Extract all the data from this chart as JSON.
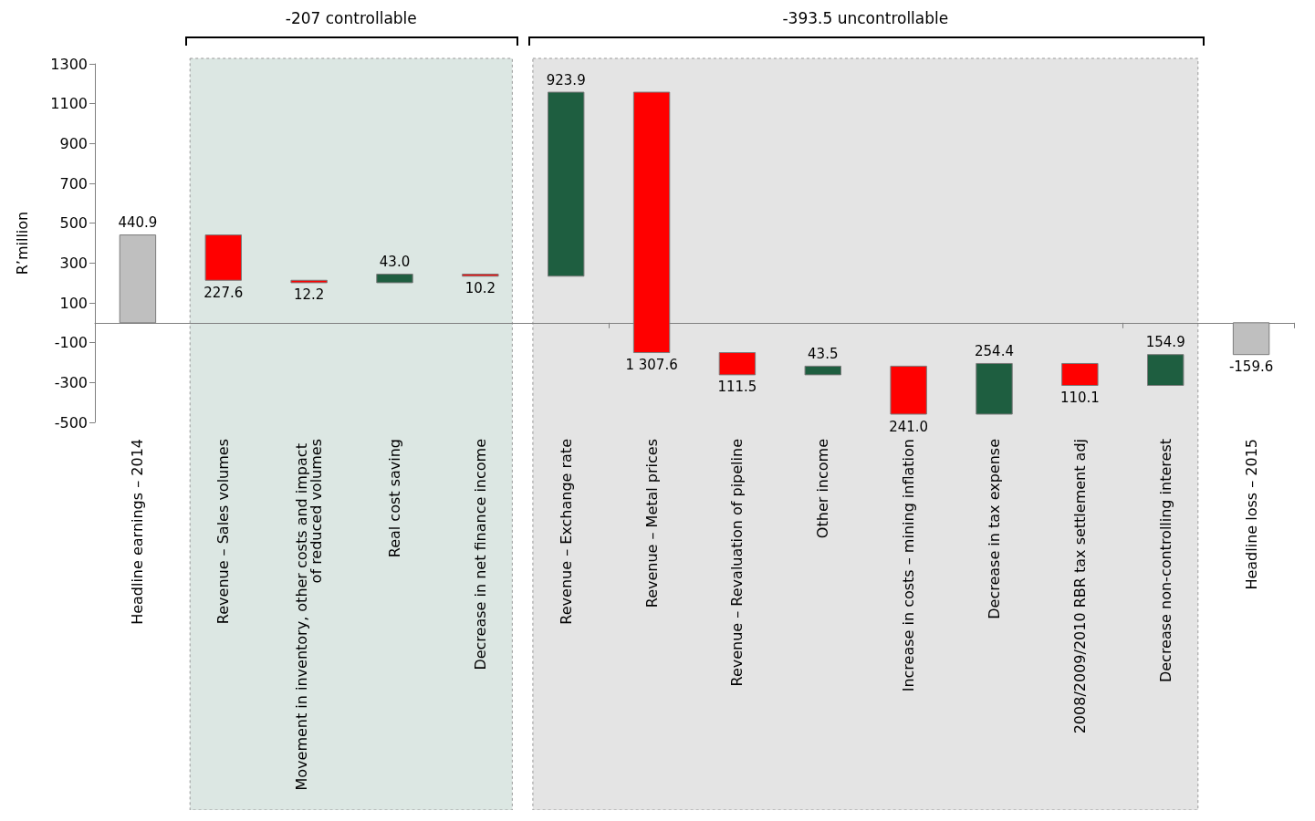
{
  "chart_data": {
    "type": "bar",
    "ylabel": "R’million",
    "categories": [
      "Headline earnings – 2014",
      "Revenue – Sales volumes",
      "Movement in inventory, other costs and impact of reduced volumes",
      "Real cost saving",
      "Decrease in net finance income",
      "Revenue – Exchange rate",
      "Revenue – Metal prices",
      "Revenue – Revaluation of pipeline",
      "Other income",
      "Increase in costs – mining inflation",
      "Decrease in tax expense",
      "2008/2009/2010 RBR tax settlement adj",
      "Decrease non-controlling interest",
      "Headline loss – 2015"
    ],
    "values": [
      440.9,
      227.6,
      12.2,
      43.0,
      10.2,
      923.9,
      1307.6,
      111.5,
      43.5,
      241.0,
      254.4,
      110.1,
      154.9,
      -159.6
    ],
    "base": [
      0,
      213.3,
      201.1,
      201.1,
      233.9,
      233.9,
      -149.8,
      -261.3,
      -261.3,
      -458.8,
      -458.8,
      -314.5,
      -314.5,
      0
    ],
    "colors": [
      "#bfbfbf",
      "#ff0000",
      "#ff0000",
      "#1e5e40",
      "#ff0000",
      "#1e5e40",
      "#ff0000",
      "#ff0000",
      "#1e5e40",
      "#ff0000",
      "#1e5e40",
      "#ff0000",
      "#1e5e40",
      "#bfbfbf"
    ],
    "value_labels": [
      "440.9",
      "227.6",
      "12.2",
      "43.0",
      "10.2",
      "923.9",
      "1 307.6",
      "111.5",
      "43.5",
      "241.0",
      "254.4",
      "110.1",
      "154.9",
      "-159.6"
    ],
    "ylim": [
      -500,
      1300
    ],
    "yticks": [
      -500,
      -300,
      -100,
      100,
      300,
      500,
      700,
      900,
      1100,
      1300
    ],
    "bands": [
      {
        "axis": "x",
        "from": "Revenue – Sales volumes",
        "to": "Decrease in net finance income",
        "label": "-207 controllable",
        "color": "#dce7e3"
      },
      {
        "axis": "x",
        "from": "Revenue – Exchange rate",
        "to": "Decrease non-controlling interest",
        "label": "-393.5 uncontrollable",
        "color": "#e4e4e4"
      }
    ],
    "grid": false
  }
}
